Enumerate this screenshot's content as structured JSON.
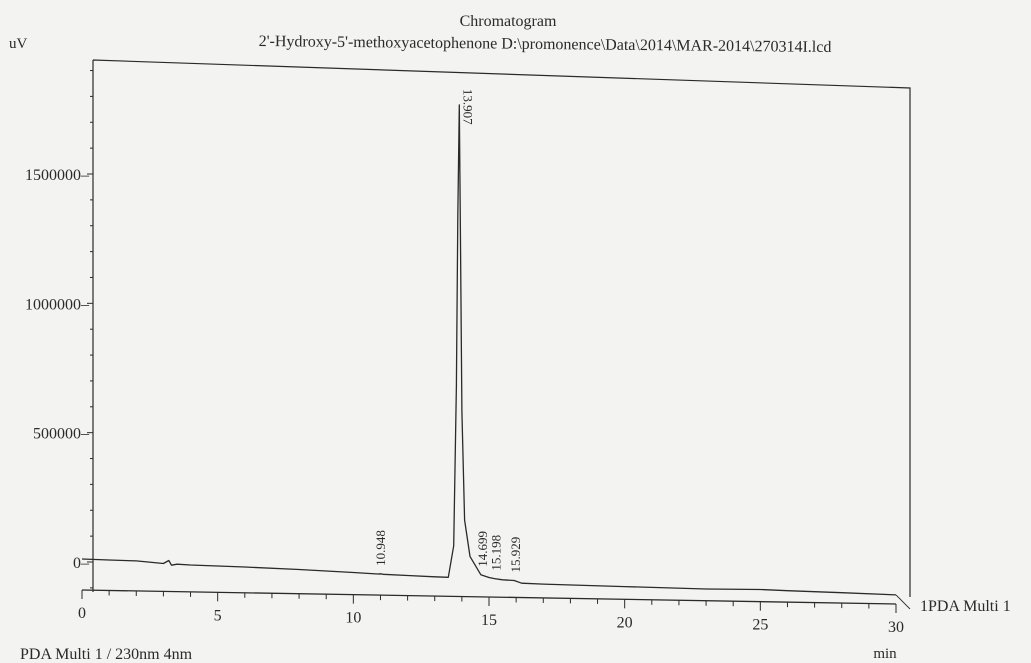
{
  "chart_data": {
    "type": "line",
    "title": "Chromatogram",
    "subtitle": "2'-Hydroxy-5'-methoxyacetophenone D:\\promonence\\Data\\2014\\MAR-2014\\270314I.lcd",
    "xlabel": "min",
    "ylabel": "uV",
    "xlim": [
      0,
      30
    ],
    "ylim": [
      -100000,
      1900000
    ],
    "x_ticks": [
      0,
      5,
      10,
      15,
      20,
      25,
      30
    ],
    "y_ticks": [
      0,
      500000,
      1000000,
      1500000
    ],
    "y_tick_labels": [
      "0",
      "500000",
      "1000000",
      "1500000"
    ],
    "series": [
      {
        "name": "1PDA Multi 1",
        "x": [
          0.0,
          1.0,
          2.0,
          3.0,
          3.2,
          3.3,
          3.5,
          4.0,
          6.0,
          8.0,
          10.0,
          10.9,
          11.0,
          11.1,
          12.0,
          13.0,
          13.5,
          13.7,
          13.8,
          13.85,
          13.907,
          13.95,
          14.0,
          14.1,
          14.3,
          14.5,
          14.699,
          15.0,
          15.198,
          15.5,
          15.929,
          16.2,
          17.0,
          20.0,
          23.0,
          25.0,
          26.0,
          28.0,
          30.0
        ],
        "values": [
          4000,
          2000,
          0,
          -8000,
          4000,
          -14000,
          -10000,
          -12000,
          -16000,
          -22000,
          -30000,
          -34000,
          -33000,
          -35000,
          -38000,
          -41000,
          -42000,
          80000,
          700000,
          1350000,
          1785000,
          1250000,
          600000,
          180000,
          40000,
          5000,
          -30000,
          -40000,
          -44000,
          -48000,
          -50000,
          -60000,
          -62000,
          -66000,
          -70000,
          -68000,
          -71000,
          -75000,
          -80000
        ]
      }
    ],
    "peaks": [
      {
        "rt": 10.948,
        "label": "10.948"
      },
      {
        "rt": 13.907,
        "label": "13.907"
      },
      {
        "rt": 14.699,
        "label": "14.699"
      },
      {
        "rt": 15.198,
        "label": "15.198"
      },
      {
        "rt": 15.929,
        "label": "15.929"
      }
    ],
    "grid": false
  },
  "footer": {
    "detector_label": "PDA Multi 1 / 230nm 4nm"
  },
  "colors": {
    "ink": "#2a2a2a",
    "paper": "#f3f3f1"
  }
}
